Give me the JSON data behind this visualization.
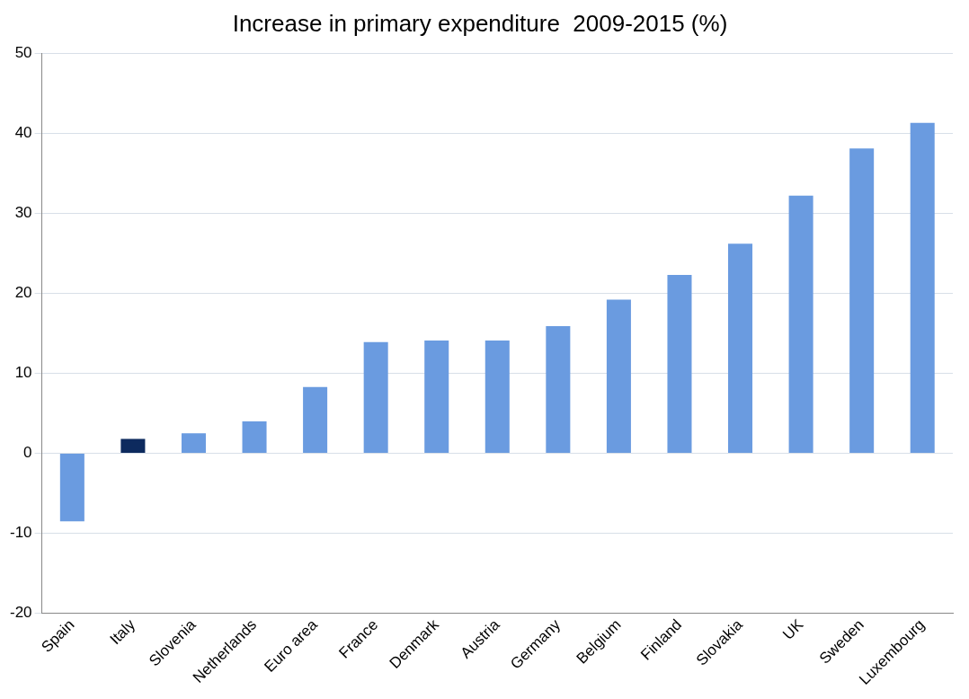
{
  "chart_data": {
    "type": "bar",
    "title": "Increase in primary expenditure  2009-2015 (%)",
    "categories": [
      "Spain",
      "Italy",
      "Slovenia",
      "Netherlands",
      "Euro area",
      "France",
      "Denmark",
      "Austria",
      "Germany",
      "Belgium",
      "Finland",
      "Slovakia",
      "UK",
      "Sweden",
      "Luxembourg"
    ],
    "values": [
      -8.5,
      1.8,
      2.5,
      4,
      8.3,
      13.9,
      14.1,
      14.1,
      15.9,
      19.2,
      22.3,
      26.2,
      32.2,
      38.1,
      41.3
    ],
    "colors": [
      "#6a9be0",
      "#0d2a5e",
      "#6a9be0",
      "#6a9be0",
      "#6a9be0",
      "#6a9be0",
      "#6a9be0",
      "#6a9be0",
      "#6a9be0",
      "#6a9be0",
      "#6a9be0",
      "#6a9be0",
      "#6a9be0",
      "#6a9be0",
      "#6a9be0"
    ],
    "ylim": [
      -20,
      50
    ],
    "yticks": [
      -20,
      -10,
      0,
      10,
      20,
      30,
      40,
      50
    ],
    "grid": "y",
    "legend": false
  }
}
